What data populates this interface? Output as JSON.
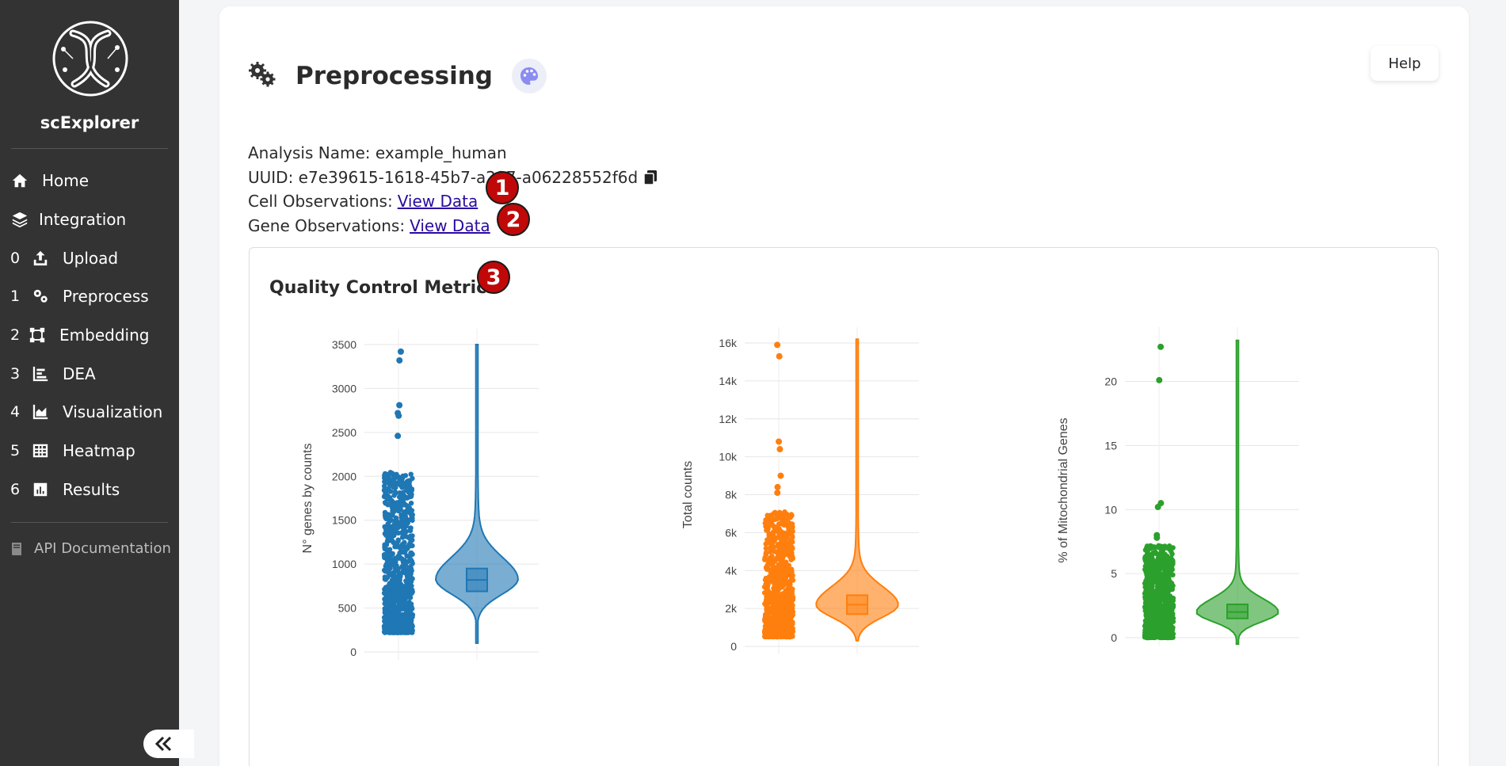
{
  "sidebar": {
    "brand": "scExplorer",
    "nav": [
      {
        "num": "",
        "label": "Home",
        "icon": "home-icon"
      },
      {
        "num": "",
        "label": "Integration",
        "icon": "layers-icon"
      },
      {
        "num": "0",
        "label": "Upload",
        "icon": "upload-icon"
      },
      {
        "num": "1",
        "label": "Preprocess",
        "icon": "gears-icon"
      },
      {
        "num": "2",
        "label": "Embedding",
        "icon": "vector-square-icon"
      },
      {
        "num": "3",
        "label": "DEA",
        "icon": "bar-chart-icon"
      },
      {
        "num": "4",
        "label": "Visualization",
        "icon": "area-chart-icon"
      },
      {
        "num": "5",
        "label": "Heatmap",
        "icon": "table-grid-icon"
      },
      {
        "num": "6",
        "label": "Results",
        "icon": "square-chart-icon"
      }
    ],
    "api_doc": "API Documentation"
  },
  "header": {
    "title": "Preprocessing",
    "help": "Help"
  },
  "info": {
    "analysis_label": "Analysis Name: ",
    "analysis_value": "example_human",
    "uuid_label": "UUID: ",
    "uuid_value": "e7e39615-1618-45b7-a297-a06228552f6d",
    "cell_label": "Cell Observations:",
    "gene_label": "Gene Observations:",
    "view_data": "View Data"
  },
  "badges": [
    "1",
    "2",
    "3"
  ],
  "qc": {
    "title": "Quality Control Metric"
  },
  "chart_data": [
    {
      "type": "violin",
      "ylabel": "N° genes by counts",
      "color": "#1f77b4",
      "yrange": [
        0,
        3500
      ],
      "ticks": [
        0,
        500,
        1000,
        1500,
        2000,
        2500,
        3000,
        3500
      ],
      "tick_labels": [
        "0",
        "500",
        "1000",
        "1500",
        "2000",
        "2500",
        "3000",
        "3500"
      ],
      "strip_min": 220,
      "strip_max": 2050,
      "outliers": [
        3420,
        3320,
        2810,
        2720,
        2690,
        2460
      ],
      "violin_min": 100,
      "violin_max": 3500,
      "median": 820,
      "q1": 690,
      "q3": 950,
      "violin_peak": 830
    },
    {
      "type": "violin",
      "ylabel": "Total counts",
      "color": "#ff7f0e",
      "yrange": [
        0,
        16000
      ],
      "ticks": [
        0,
        2000,
        4000,
        6000,
        8000,
        10000,
        12000,
        14000,
        16000
      ],
      "tick_labels": [
        "0",
        "2k",
        "4k",
        "6k",
        "8k",
        "10k",
        "12k",
        "14k",
        "16k"
      ],
      "strip_min": 500,
      "strip_max": 7100,
      "outliers": [
        15900,
        15300,
        10800,
        10400,
        9000,
        8400,
        8100
      ],
      "violin_min": 300,
      "violin_max": 16200,
      "median": 2200,
      "q1": 1700,
      "q3": 2700,
      "violin_peak": 2200
    },
    {
      "type": "violin",
      "ylabel": "% of Mitochondrial Genes",
      "color": "#2ca02c",
      "yrange": [
        0,
        23
      ],
      "ticks": [
        0,
        5,
        10,
        15,
        20
      ],
      "tick_labels": [
        "0",
        "5",
        "10",
        "15",
        "20"
      ],
      "strip_min": 0,
      "strip_max": 7.2,
      "outliers": [
        22.7,
        20.1,
        10.5,
        10.2,
        8.0,
        7.8
      ],
      "violin_min": -0.5,
      "violin_max": 23.2,
      "median": 2.0,
      "q1": 1.5,
      "q3": 2.6,
      "violin_peak": 2.0
    }
  ]
}
